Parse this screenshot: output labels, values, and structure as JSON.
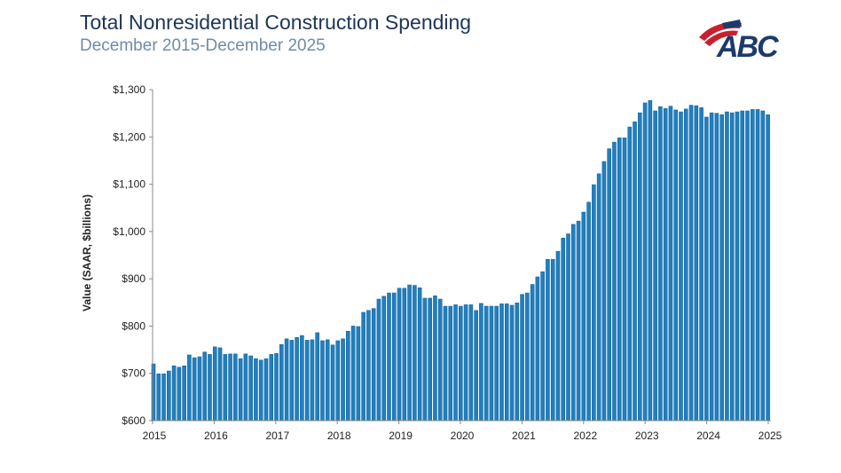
{
  "title": "Total Nonresidential Construction Spending",
  "subtitle": "December 2015-December 2025",
  "logo": {
    "text": "ABC",
    "colors": {
      "navy": "#1d3a6b",
      "red": "#c8202f"
    }
  },
  "chart_data": {
    "type": "bar",
    "title": "Total Nonresidential Construction Spending",
    "ylabel": "Value (SAAR, $billions)",
    "xlabel": "",
    "ylim": [
      600,
      1300
    ],
    "yticks": [
      "$600",
      "$700",
      "$800",
      "$900",
      "$1,000",
      "$1,100",
      "$1,200",
      "$1,300"
    ],
    "xticks": [
      "2015",
      "2016",
      "2017",
      "2018",
      "2019",
      "2020",
      "2021",
      "2022",
      "2023",
      "2024",
      "2025"
    ],
    "grid": false,
    "bar_color": "#1f80c0",
    "values": [
      720,
      699,
      699,
      705,
      716,
      713,
      716,
      739,
      733,
      735,
      745,
      740,
      756,
      754,
      740,
      741,
      741,
      731,
      741,
      737,
      731,
      728,
      731,
      740,
      742,
      761,
      773,
      770,
      776,
      780,
      770,
      771,
      786,
      769,
      771,
      760,
      769,
      773,
      789,
      800,
      799,
      829,
      833,
      837,
      857,
      863,
      870,
      870,
      880,
      880,
      887,
      886,
      881,
      859,
      859,
      864,
      857,
      842,
      842,
      845,
      842,
      845,
      845,
      833,
      848,
      842,
      842,
      842,
      847,
      847,
      844,
      849,
      867,
      870,
      888,
      904,
      915,
      941,
      941,
      958,
      986,
      995,
      1015,
      1022,
      1041,
      1062,
      1099,
      1122,
      1148,
      1175,
      1189,
      1198,
      1198,
      1221,
      1232,
      1251,
      1272,
      1277,
      1255,
      1264,
      1260,
      1265,
      1257,
      1253,
      1259,
      1267,
      1266,
      1262,
      1242,
      1251,
      1250,
      1247,
      1253,
      1251,
      1253,
      1255,
      1255,
      1258,
      1258,
      1255,
      1247
    ]
  }
}
